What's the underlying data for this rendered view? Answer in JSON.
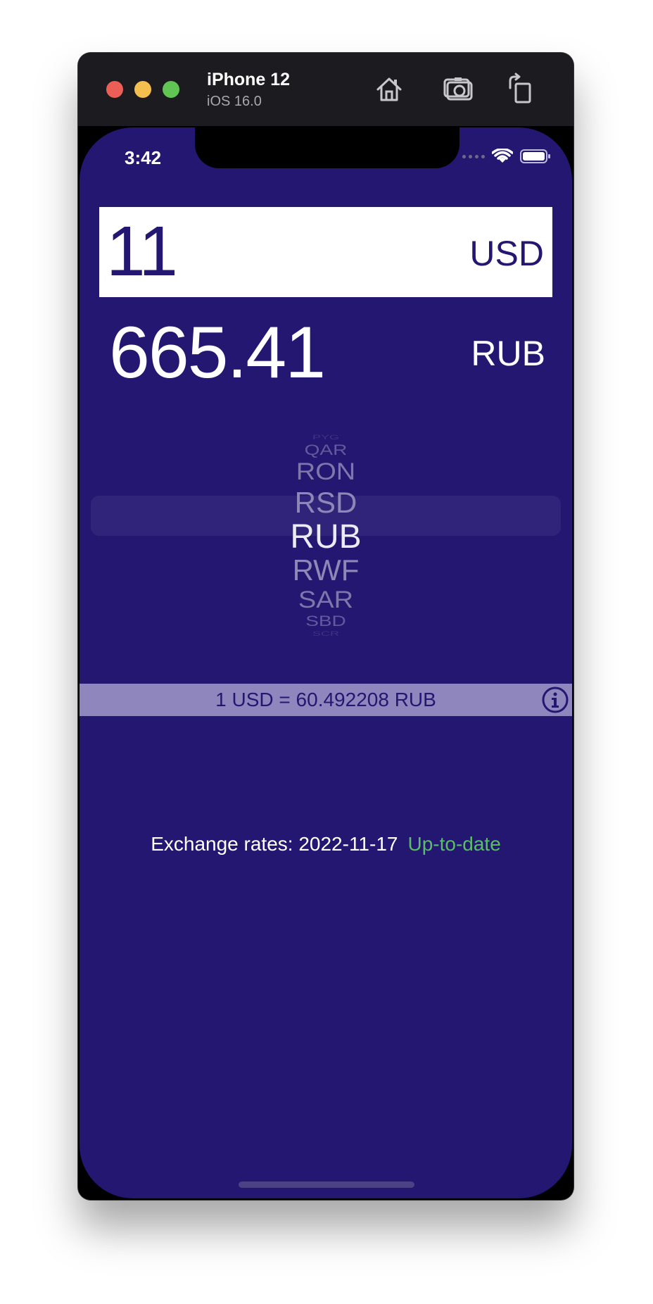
{
  "simulator": {
    "device_name": "iPhone 12",
    "os_version": "iOS 16.0",
    "icons": [
      "home-icon",
      "screenshot-icon",
      "rotate-icon"
    ]
  },
  "status_bar": {
    "time": "3:42"
  },
  "converter": {
    "input_value": "11",
    "input_currency": "USD",
    "result_value": "665.41",
    "result_currency": "RUB"
  },
  "picker": {
    "items": [
      "PYG",
      "QAR",
      "RON",
      "RSD",
      "RUB",
      "RWF",
      "SAR",
      "SBD",
      "SCR"
    ],
    "selected": "RUB"
  },
  "rate_bar": {
    "text": "1 USD = 60.492208 RUB"
  },
  "footer": {
    "label": "Exchange rates: 2022-11-17",
    "status": "Up-to-date"
  },
  "colors": {
    "background": "#231771",
    "rate_bar": "#8f86bd",
    "status_ok": "#5bbd67"
  }
}
